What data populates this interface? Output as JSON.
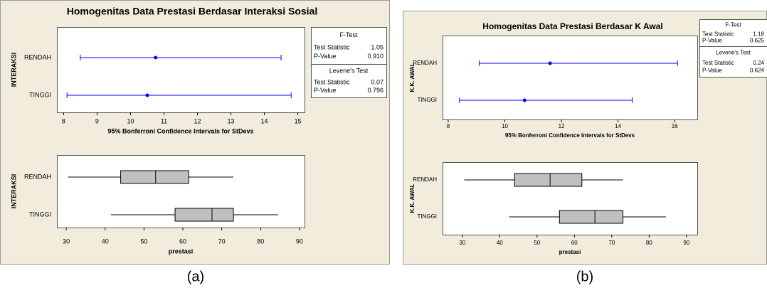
{
  "chart_data": [
    {
      "type": "interval",
      "title": "Homogenitas Data Prestasi Berdasar Interaksi Sosial",
      "xlabel": "95% Bonferroni Confidence Intervals for StDevs",
      "ylabel": "INTERAKSI",
      "categories": [
        "RENDAH",
        "TINGGI"
      ],
      "color": "#0000ff",
      "lower": [
        8.5,
        8.1
      ],
      "values": [
        10.75,
        10.5
      ],
      "upper": [
        14.5,
        14.8
      ],
      "xlim": [
        7.8,
        15.2
      ],
      "xticks": [
        8,
        9,
        10,
        11,
        12,
        13,
        14,
        15
      ],
      "tests": [
        {
          "name": "F-Test",
          "rows": [
            {
              "label": "Test Statistic",
              "value": "1.05"
            },
            {
              "label": "P-Value",
              "value": "0.910"
            }
          ]
        },
        {
          "name": "Levene's Test",
          "rows": [
            {
              "label": "Test Statistic",
              "value": "0.07"
            },
            {
              "label": "P-Value",
              "value": "0.796"
            }
          ]
        }
      ]
    },
    {
      "type": "box",
      "xlabel": "prestasi",
      "ylabel": "INTERAKSI",
      "caption": "(a)",
      "categories": [
        "RENDAH",
        "TINGGI"
      ],
      "color": "#c0c0c0",
      "min": [
        30.5,
        41.5
      ],
      "q1": [
        44,
        58
      ],
      "median": [
        53,
        67.5
      ],
      "q3": [
        61.5,
        73
      ],
      "max": [
        73,
        84.5
      ],
      "xlim": [
        27.6,
        91.3
      ],
      "xticks": [
        30,
        40,
        50,
        60,
        70,
        80,
        90
      ]
    },
    {
      "type": "interval",
      "title": "Homogenitas Data Prestasi Berdasar K Awal",
      "xlabel": "95% Bonferroni Confidence Intervals for StDevs",
      "ylabel": "K.K. AWAL",
      "categories": [
        "RENDAH",
        "TINGGI"
      ],
      "color": "#0000ff",
      "lower": [
        9.1,
        8.4
      ],
      "values": [
        11.6,
        10.7
      ],
      "upper": [
        16.1,
        14.5
      ],
      "xlim": [
        7.8,
        16.8
      ],
      "xticks": [
        8,
        10,
        12,
        14,
        16
      ],
      "tests": [
        {
          "name": "F-Test",
          "rows": [
            {
              "label": "Test Statistic",
              "value": "1.18"
            },
            {
              "label": "P-Value",
              "value": "0.625"
            }
          ]
        },
        {
          "name": "Levene's Test",
          "rows": [
            {
              "label": "Test Statistic",
              "value": "0.24"
            },
            {
              "label": "P-Value",
              "value": "0.624"
            }
          ]
        }
      ]
    },
    {
      "type": "box",
      "xlabel": "prestasi",
      "ylabel": "K.K. AWAL",
      "caption": "(b)",
      "categories": [
        "RENDAH",
        "TINGGI"
      ],
      "color": "#c0c0c0",
      "min": [
        30.5,
        42.5
      ],
      "q1": [
        44,
        56
      ],
      "median": [
        53.5,
        65.5
      ],
      "q3": [
        62,
        73
      ],
      "max": [
        73,
        84.5
      ],
      "xlim": [
        24.7,
        92.9
      ],
      "xticks": [
        30,
        40,
        50,
        60,
        70,
        80,
        90
      ]
    }
  ]
}
